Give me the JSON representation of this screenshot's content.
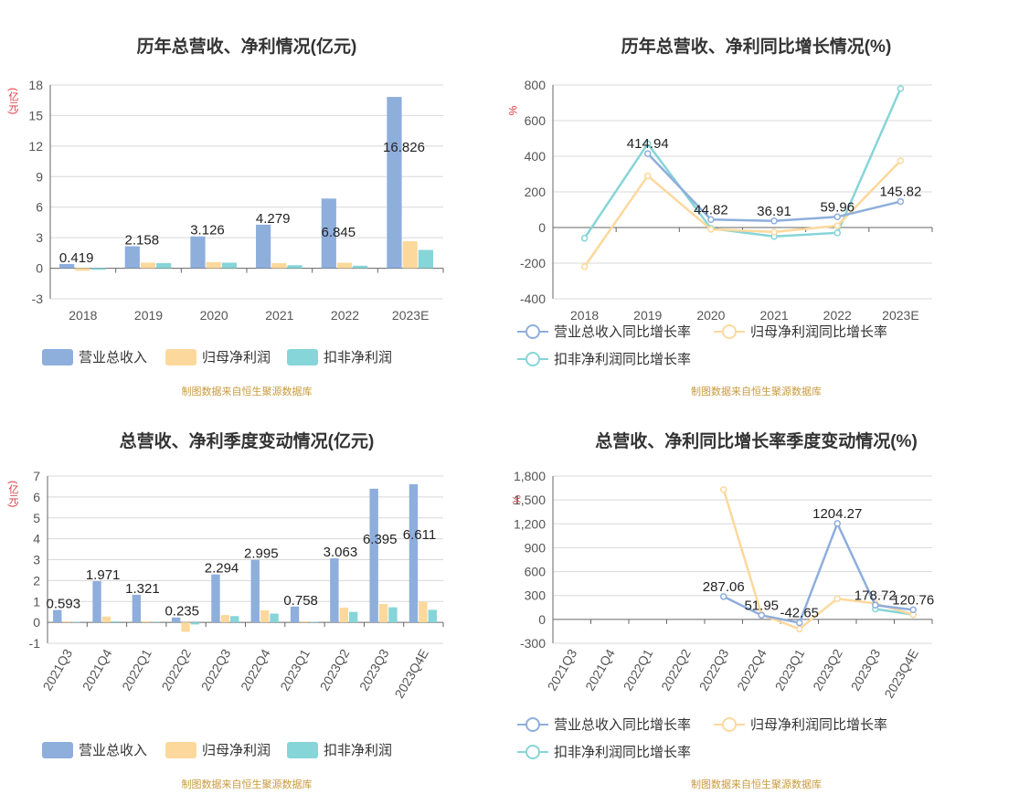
{
  "colors": {
    "revenue": "#8eaedc",
    "net_profit": "#fdd89c",
    "deducted_profit": "#86d5d8"
  },
  "panels": {
    "annual_values": {
      "title": "历年总营收、净利情况(亿元)",
      "unit": "(亿元)",
      "source": "制图数据来自恒生聚源数据库",
      "legend": [
        "营业总收入",
        "归母净利润",
        "扣非净利润"
      ]
    },
    "annual_growth": {
      "title": "历年总营收、净利同比增长情况(%)",
      "unit": "%",
      "source": "制图数据来自恒生聚源数据库",
      "legend": [
        "营业总收入同比增长率",
        "归母净利润同比增长率",
        "扣非净利润同比增长率"
      ]
    },
    "quarterly_values": {
      "title": "总营收、净利季度变动情况(亿元)",
      "unit": "(亿元)",
      "source": "制图数据来自恒生聚源数据库",
      "legend": [
        "营业总收入",
        "归母净利润",
        "扣非净利润"
      ]
    },
    "quarterly_growth": {
      "title": "总营收、净利同比增长率季度变动情况(%)",
      "unit": "%",
      "source": "制图数据来自恒生聚源数据库",
      "legend": [
        "营业总收入同比增长率",
        "归母净利润同比增长率",
        "扣非净利润同比增长率"
      ]
    }
  },
  "chart_data": [
    {
      "type": "bar",
      "title": "历年总营收、净利情况(亿元)",
      "ylabel": "(亿元)",
      "categories": [
        "2018",
        "2019",
        "2020",
        "2021",
        "2022",
        "2023E"
      ],
      "ylim": [
        -3,
        18
      ],
      "yticks": [
        -3,
        0,
        3,
        6,
        9,
        12,
        15,
        18
      ],
      "ytick_labels": [
        "-3",
        "0",
        "3",
        "6",
        "9",
        "12",
        "15",
        "18"
      ],
      "grid": true,
      "legend_position": "bottom-left",
      "series": [
        {
          "name": "营业总收入",
          "values": [
            0.419,
            2.158,
            3.126,
            4.279,
            6.845,
            16.826
          ],
          "labels": [
            "0.419",
            "2.158",
            "3.126",
            "4.279",
            "6.845",
            "16.826"
          ]
        },
        {
          "name": "归母净利润",
          "values": [
            -0.25,
            0.55,
            0.6,
            0.5,
            0.55,
            2.65
          ]
        },
        {
          "name": "扣非净利润",
          "values": [
            -0.15,
            0.5,
            0.55,
            0.3,
            0.25,
            1.8
          ]
        }
      ]
    },
    {
      "type": "line",
      "title": "历年总营收、净利同比增长情况(%)",
      "ylabel": "%",
      "categories": [
        "2018",
        "2019",
        "2020",
        "2021",
        "2022",
        "2023E"
      ],
      "ylim": [
        -400,
        800
      ],
      "yticks": [
        -400,
        -200,
        0,
        200,
        400,
        600,
        800
      ],
      "ytick_labels": [
        "-400",
        "-200",
        "0",
        "200",
        "400",
        "600",
        "800"
      ],
      "grid": true,
      "legend_position": "bottom-left",
      "series": [
        {
          "name": "营业总收入同比增长率",
          "values": [
            null,
            414.94,
            44.82,
            36.91,
            59.96,
            145.82
          ],
          "labels": [
            null,
            "414.94",
            "44.82",
            "36.91",
            "59.96",
            "145.82"
          ]
        },
        {
          "name": "归母净利润同比增长率",
          "values": [
            -220,
            290,
            -10,
            -25,
            10,
            375
          ]
        },
        {
          "name": "扣非净利润同比增长率",
          "values": [
            -60,
            470,
            -5,
            -50,
            -30,
            780
          ]
        }
      ]
    },
    {
      "type": "bar",
      "title": "总营收、净利季度变动情况(亿元)",
      "ylabel": "(亿元)",
      "categories": [
        "2021Q3",
        "2021Q4",
        "2022Q1",
        "2022Q2",
        "2022Q3",
        "2022Q4",
        "2023Q1",
        "2023Q2",
        "2023Q3",
        "2023Q4E"
      ],
      "ylim": [
        -1,
        7
      ],
      "yticks": [
        -1,
        0,
        1,
        2,
        3,
        4,
        5,
        6,
        7
      ],
      "ytick_labels": [
        "-1",
        "0",
        "1",
        "2",
        "3",
        "4",
        "5",
        "6",
        "7"
      ],
      "grid": true,
      "legend_position": "bottom-left",
      "series": [
        {
          "name": "营业总收入",
          "values": [
            0.593,
            1.971,
            1.321,
            0.235,
            2.294,
            2.995,
            0.758,
            3.063,
            6.395,
            6.611
          ],
          "labels": [
            "0.593",
            "1.971",
            "1.321",
            "0.235",
            "2.294",
            "2.995",
            "0.758",
            "3.063",
            "6.395",
            "6.611"
          ]
        },
        {
          "name": "归母净利润",
          "values": [
            0.05,
            0.28,
            0.05,
            -0.45,
            0.35,
            0.58,
            0.05,
            0.7,
            0.88,
            0.98
          ]
        },
        {
          "name": "扣非净利润",
          "values": [
            0.03,
            0.05,
            0.02,
            -0.1,
            0.3,
            0.42,
            0.03,
            0.5,
            0.72,
            0.6
          ]
        }
      ]
    },
    {
      "type": "line",
      "title": "总营收、净利同比增长率季度变动情况(%)",
      "ylabel": "%",
      "categories": [
        "2021Q3",
        "2021Q4",
        "2022Q1",
        "2022Q2",
        "2022Q3",
        "2022Q4",
        "2023Q1",
        "2023Q2",
        "2023Q3",
        "2023Q4E"
      ],
      "ylim": [
        -300,
        1800
      ],
      "yticks": [
        -300,
        0,
        300,
        600,
        900,
        1200,
        1500,
        1800
      ],
      "ytick_labels": [
        "-300",
        "0",
        "300",
        "600",
        "900",
        "1,200",
        "1,500",
        "1,800"
      ],
      "grid": true,
      "legend_position": "bottom-left",
      "series": [
        {
          "name": "营业总收入同比增长率",
          "values": [
            null,
            null,
            null,
            null,
            287.06,
            51.95,
            -42.65,
            1204.27,
            178.72,
            120.76
          ],
          "labels": [
            null,
            null,
            null,
            null,
            "287.06",
            "51.95",
            "-42.65",
            "1204.27",
            "178.72",
            "120.76"
          ]
        },
        {
          "name": "归母净利润同比增长率",
          "values": [
            null,
            null,
            null,
            null,
            1630,
            60,
            -120,
            260,
            200,
            60
          ]
        },
        {
          "name": "扣非净利润同比增长率",
          "values": [
            null,
            null,
            null,
            null,
            null,
            null,
            null,
            null,
            130,
            60
          ]
        }
      ]
    }
  ]
}
